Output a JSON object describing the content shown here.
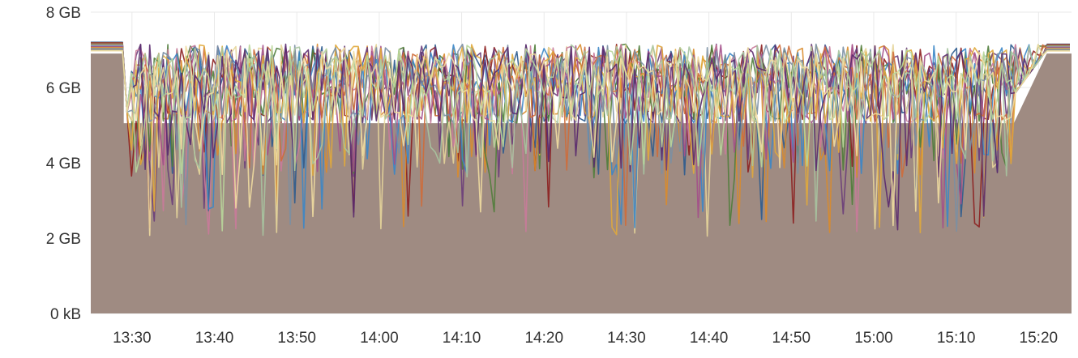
{
  "chart_data": {
    "type": "area",
    "title": "",
    "xlabel": "",
    "ylabel": "",
    "x_ticks": [
      "13:30",
      "13:40",
      "13:50",
      "14:00",
      "14:10",
      "14:20",
      "14:30",
      "14:40",
      "14:50",
      "15:00",
      "15:10",
      "15:20"
    ],
    "y_ticks": [
      "0 kB",
      "2 GB",
      "4 GB",
      "6 GB",
      "8 GB"
    ],
    "xlim": [
      "13:25",
      "15:24"
    ],
    "ylim_gb": [
      0,
      8
    ],
    "grid": "vertical and horizontal, light gray",
    "legend": "none",
    "area_fill_color": "#9f8b82",
    "series_colors": [
      "#2c5b8e",
      "#8c1f1f",
      "#d98b2b",
      "#6a3d7a",
      "#4f7d3a",
      "#e6d59a",
      "#c97a9a",
      "#3b86c6",
      "#a34f8a",
      "#ce6b3a",
      "#e0a83b",
      "#7a8fa3",
      "#a7c4a0",
      "#5a2a6e",
      "#b8d69a",
      "#f0dca0"
    ],
    "series_count": 16,
    "approx_baseline_gb": 5.05,
    "approx_peak_gb": 7.15,
    "approx_start_level_gb": 7.2,
    "approx_end_level_gb": 7.15,
    "approx_min_dip_gb": 2.05,
    "area_profile": [
      {
        "time": "13:25",
        "gb": 6.9
      },
      {
        "time": "13:29",
        "gb": 6.9
      },
      {
        "time": "13:29",
        "gb": 5.05
      },
      {
        "time": "15:17",
        "gb": 5.05
      },
      {
        "time": "15:21",
        "gb": 6.9
      },
      {
        "time": "15:24",
        "gb": 6.9
      }
    ]
  }
}
